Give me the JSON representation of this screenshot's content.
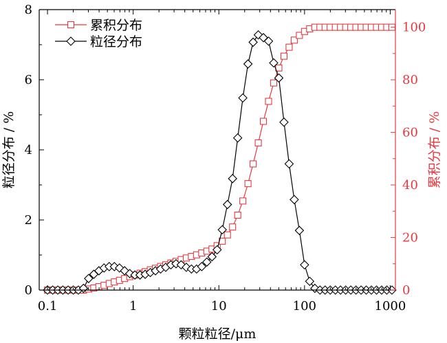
{
  "chart_data": {
    "type": "line",
    "xlabel": "颗粒粒径/μm",
    "ylabel_left": "粒径分布 / %",
    "ylabel_right": "累积分布 / %",
    "x_scale": "log",
    "xlim": [
      0.08,
      1150
    ],
    "ylim_left": [
      0,
      8
    ],
    "ylim_right": [
      0,
      106.7
    ],
    "x_ticks": [
      0.1,
      1,
      10,
      100,
      1000
    ],
    "x_tick_labels": [
      "0.1",
      "1",
      "10",
      "100",
      "1000"
    ],
    "y_left_ticks": [
      0,
      2,
      4,
      6,
      8
    ],
    "y_left_tick_labels": [
      "0",
      "2",
      "4",
      "6",
      "8"
    ],
    "y_right_ticks": [
      0,
      20,
      40,
      60,
      80,
      100
    ],
    "y_right_tick_labels": [
      "0",
      "20",
      "40",
      "60",
      "80",
      "100"
    ],
    "grid": false,
    "legend_position": "top-left",
    "colors": {
      "cumulative": "#e8393f",
      "distribution": "#000000",
      "axis_left": "#000000",
      "axis_right": "#e8393f"
    },
    "series": [
      {
        "name": "累积分布",
        "axis": "right",
        "marker": "square",
        "x": [
          0.1,
          0.115,
          0.132,
          0.151,
          0.174,
          0.2,
          0.229,
          0.263,
          0.302,
          0.347,
          0.398,
          0.457,
          0.525,
          0.603,
          0.692,
          0.794,
          0.912,
          1.047,
          1.202,
          1.38,
          1.585,
          1.82,
          2.089,
          2.399,
          2.754,
          3.162,
          3.631,
          4.169,
          4.786,
          5.495,
          6.31,
          7.244,
          8.318,
          9.55,
          10.96,
          12.59,
          14.45,
          16.6,
          19.05,
          21.88,
          25.12,
          28.84,
          33.11,
          38.02,
          43.65,
          50.12,
          57.54,
          66.07,
          75.86,
          87.1,
          100,
          114.8,
          131.8,
          151.4,
          173.8,
          199.5,
          229.1,
          263,
          302,
          346.7,
          398.1,
          457.1,
          524.8,
          602.6,
          691.8,
          794.3,
          912,
          1047
        ],
        "values": [
          0,
          0,
          0,
          0,
          0,
          0,
          0,
          0,
          0.4,
          0.8,
          1.3,
          1.8,
          2.5,
          3.1,
          3.7,
          4.4,
          5.1,
          5.7,
          6.4,
          7.0,
          7.7,
          8.3,
          9.0,
          9.6,
          10.3,
          10.9,
          11.6,
          12.2,
          12.8,
          13.4,
          14.1,
          14.8,
          15.6,
          16.9,
          18.6,
          21.0,
          24.0,
          28.5,
          33.9,
          40.5,
          48.0,
          56.0,
          64.2,
          71.8,
          78.8,
          84.5,
          89.0,
          92.4,
          95.1,
          96.9,
          98.4,
          99.4,
          100,
          100,
          100,
          100,
          100,
          100,
          100,
          100,
          100,
          100,
          100,
          100,
          100,
          100,
          100,
          100
        ]
      },
      {
        "name": "粒径分布",
        "axis": "left",
        "marker": "diamond",
        "x": [
          0.1,
          0.115,
          0.132,
          0.151,
          0.174,
          0.2,
          0.229,
          0.263,
          0.302,
          0.347,
          0.398,
          0.457,
          0.525,
          0.603,
          0.692,
          0.794,
          0.912,
          1.047,
          1.202,
          1.38,
          1.585,
          1.82,
          2.089,
          2.399,
          2.754,
          3.162,
          3.631,
          4.169,
          4.786,
          5.495,
          6.31,
          7.244,
          8.318,
          9.55,
          10.96,
          12.59,
          14.45,
          16.6,
          19.05,
          21.88,
          25.12,
          28.84,
          33.11,
          38.02,
          43.65,
          50.12,
          57.54,
          66.07,
          75.86,
          87.1,
          100,
          114.8,
          131.8,
          151.4,
          173.8,
          199.5,
          229.1,
          263,
          302,
          346.7,
          398.1,
          457.1,
          524.8,
          602.6,
          691.8,
          794.3,
          912,
          1047
        ],
        "values": [
          0,
          0,
          0,
          0,
          0,
          0,
          0,
          0.05,
          0.33,
          0.45,
          0.55,
          0.63,
          0.67,
          0.67,
          0.63,
          0.55,
          0.47,
          0.43,
          0.43,
          0.45,
          0.5,
          0.55,
          0.6,
          0.65,
          0.72,
          0.75,
          0.72,
          0.65,
          0.6,
          0.6,
          0.67,
          0.8,
          0.95,
          1.15,
          1.72,
          2.44,
          3.18,
          4.34,
          5.48,
          6.45,
          7.07,
          7.28,
          7.2,
          7.1,
          6.48,
          6.05,
          4.79,
          3.6,
          2.58,
          1.7,
          0.72,
          0.25,
          0.05,
          0,
          0,
          0,
          0,
          0,
          0,
          0,
          0,
          0,
          0,
          0,
          0,
          0,
          0,
          0
        ]
      }
    ]
  }
}
